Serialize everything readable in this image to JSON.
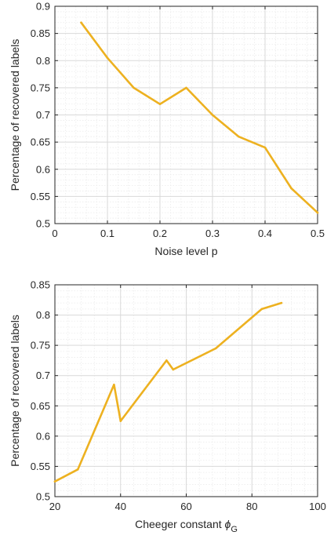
{
  "colors": {
    "series": "#EDB120",
    "axis": "#262626"
  },
  "chart_data": [
    {
      "type": "line",
      "title": "",
      "xlabel": "Noise level p",
      "ylabel": "Percentage of recovered labels",
      "xlim": [
        0,
        0.5
      ],
      "ylim": [
        0.5,
        0.9
      ],
      "xticks": [
        0,
        0.1,
        0.2,
        0.3,
        0.4,
        0.5
      ],
      "xtick_labels": [
        "0",
        "0.1",
        "0.2",
        "0.3",
        "0.4",
        "0.5"
      ],
      "yticks": [
        0.5,
        0.55,
        0.6,
        0.65,
        0.7,
        0.75,
        0.8,
        0.85,
        0.9
      ],
      "ytick_labels": [
        "0.5",
        "0.55",
        "0.6",
        "0.65",
        "0.7",
        "0.75",
        "0.8",
        "0.85",
        "0.9"
      ],
      "grid": true,
      "series": [
        {
          "x": [
            0.05,
            0.1,
            0.15,
            0.2,
            0.25,
            0.3,
            0.35,
            0.4,
            0.45,
            0.5
          ],
          "values": [
            0.87,
            0.805,
            0.75,
            0.72,
            0.75,
            0.7,
            0.66,
            0.64,
            0.565,
            0.52
          ]
        }
      ]
    },
    {
      "type": "line",
      "title": "",
      "xlabel": "Cheeger constant ",
      "xlabel_symbol": "ϕ",
      "xlabel_subscript": "G",
      "ylabel": "Percentage of recovered labels",
      "xlim": [
        20,
        100
      ],
      "ylim": [
        0.5,
        0.85
      ],
      "xticks": [
        20,
        40,
        60,
        80,
        100
      ],
      "xtick_labels": [
        "20",
        "40",
        "60",
        "80",
        "100"
      ],
      "yticks": [
        0.5,
        0.55,
        0.6,
        0.65,
        0.7,
        0.75,
        0.8,
        0.85
      ],
      "ytick_labels": [
        "0.5",
        "0.55",
        "0.6",
        "0.65",
        "0.7",
        "0.75",
        "0.8",
        "0.85"
      ],
      "grid": true,
      "series": [
        {
          "x": [
            20,
            27,
            38,
            40,
            54,
            56,
            69,
            83,
            89
          ],
          "values": [
            0.525,
            0.545,
            0.685,
            0.625,
            0.725,
            0.71,
            0.745,
            0.81,
            0.82
          ]
        }
      ]
    }
  ]
}
